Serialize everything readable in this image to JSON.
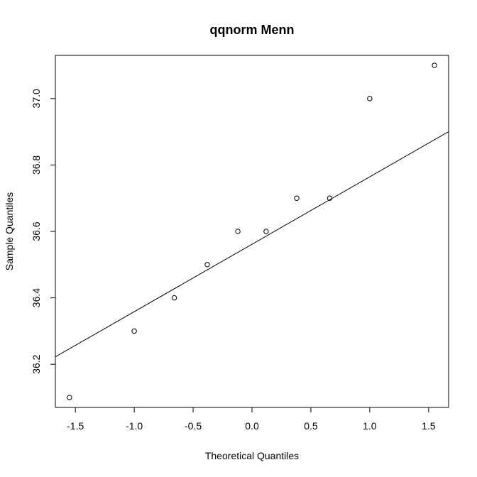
{
  "chart_data": {
    "type": "scatter",
    "title": "qqnorm Menn",
    "xlabel": "Theoretical Quantiles",
    "ylabel": "Sample Quantiles",
    "xlim": [
      -1.67,
      1.67
    ],
    "ylim": [
      36.07,
      37.13
    ],
    "xticks": [
      -1.5,
      -1.0,
      -0.5,
      0.0,
      0.5,
      1.0,
      1.5
    ],
    "xtick_labels": [
      "-1.5",
      "-1.0",
      "-0.5",
      "0.0",
      "0.5",
      "1.0",
      "1.5"
    ],
    "yticks": [
      36.2,
      36.4,
      36.6,
      36.8,
      37.0
    ],
    "ytick_labels": [
      "36.2",
      "36.4",
      "36.6",
      "36.8",
      "37.0"
    ],
    "grid": false,
    "points": [
      {
        "x": -1.55,
        "y": 36.1
      },
      {
        "x": -1.0,
        "y": 36.3
      },
      {
        "x": -0.66,
        "y": 36.4
      },
      {
        "x": -0.38,
        "y": 36.5
      },
      {
        "x": -0.12,
        "y": 36.6
      },
      {
        "x": 0.12,
        "y": 36.6
      },
      {
        "x": 0.38,
        "y": 36.7
      },
      {
        "x": 0.66,
        "y": 36.7
      },
      {
        "x": 1.0,
        "y": 37.0
      },
      {
        "x": 1.55,
        "y": 37.1
      }
    ],
    "reference_line": {
      "intercept": 36.5613,
      "slope": 0.203
    }
  }
}
